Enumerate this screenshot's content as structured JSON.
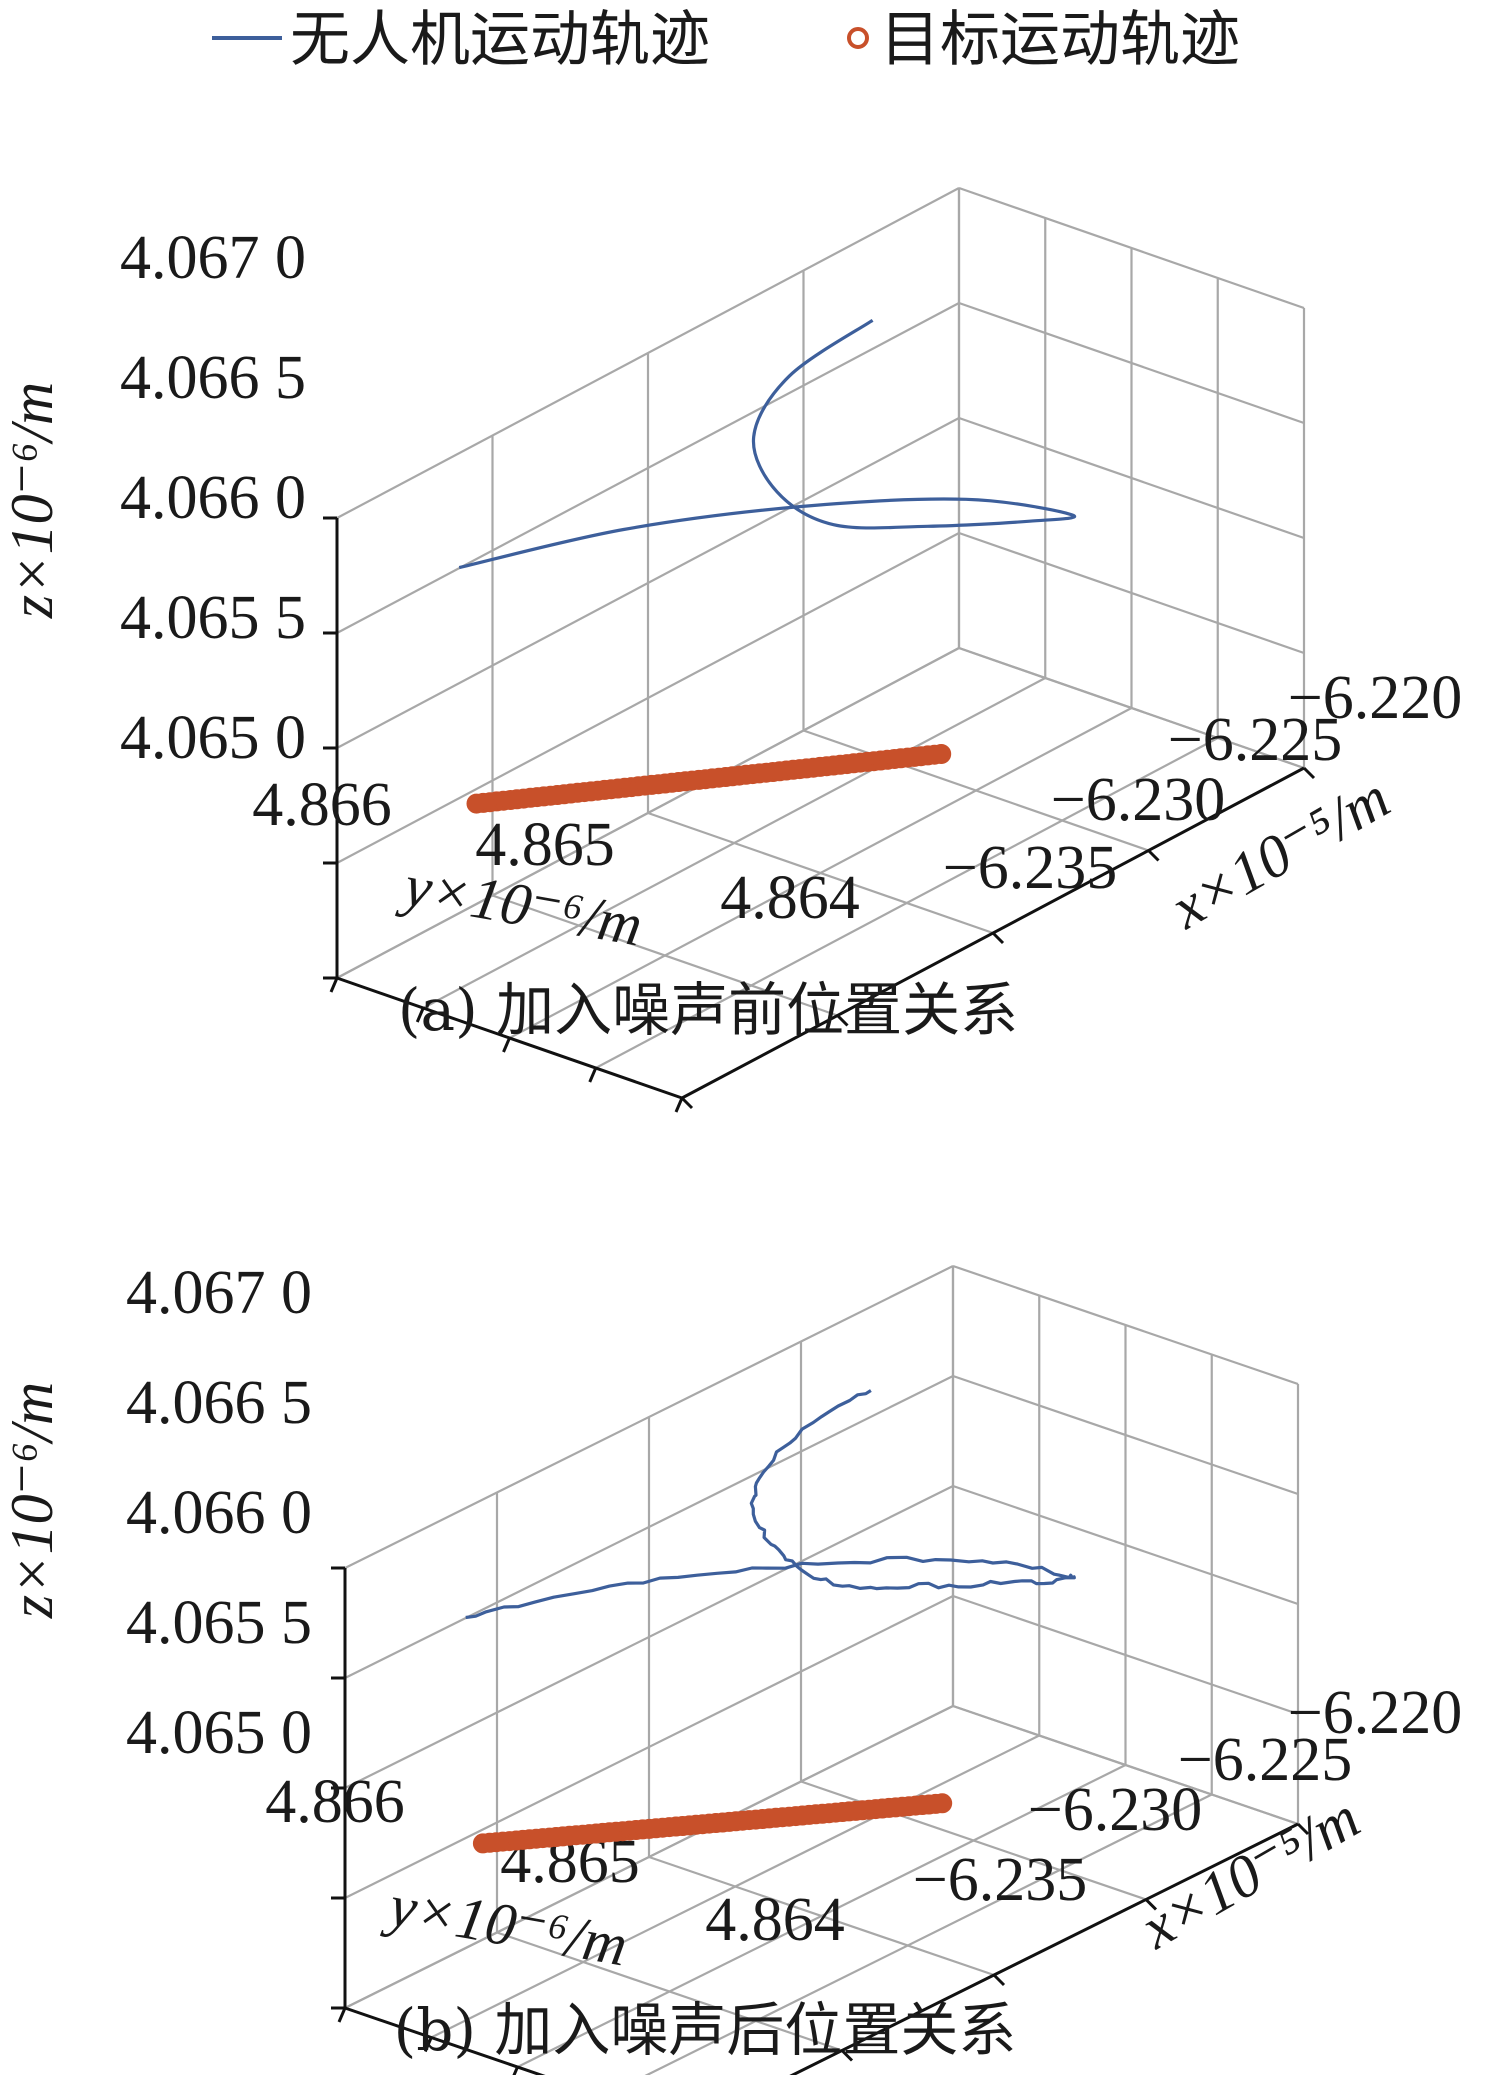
{
  "legend": {
    "position": "top-center",
    "items": [
      {
        "label": "无人机运动轨迹",
        "marker": "line",
        "color": "#3d5f9b"
      },
      {
        "label": "目标运动轨迹",
        "marker": "circle",
        "color": "#c8502a"
      }
    ]
  },
  "chart_data": [
    {
      "type": "line3d",
      "caption": "(a) 加入噪声前位置关系",
      "x_axis": {
        "label": "x×10⁻⁵/m",
        "ticks": [
          "−6.235",
          "−6.230",
          "−6.225",
          "−6.220"
        ],
        "range": [
          -6.235,
          -6.22
        ]
      },
      "y_axis": {
        "label": "y×10⁻⁶/m",
        "ticks": [
          "4.866",
          "4.865",
          "4.864"
        ],
        "range": [
          4.864,
          4.866
        ]
      },
      "z_axis": {
        "label": "z×10⁻⁶/m",
        "ticks": [
          "4.065 0",
          "4.065 5",
          "4.066 0",
          "4.066 5",
          "4.067 0"
        ],
        "range": [
          4.065,
          4.067
        ]
      },
      "grid": true,
      "noise": false,
      "series": [
        {
          "name": "无人机运动轨迹",
          "style": "line",
          "x": [
            -6.2333,
            -6.231,
            -6.2288,
            -6.2269,
            -6.226,
            -6.2262,
            -6.227,
            -6.2276,
            -6.2273,
            -6.2262,
            -6.2245,
            -6.2225
          ],
          "y": [
            4.8657,
            4.8653,
            4.8648,
            4.8643,
            4.8639,
            4.8641,
            4.8645,
            4.8649,
            4.8653,
            4.8657,
            4.8659,
            4.8659
          ],
          "z": [
            4.0667,
            4.06675,
            4.06677,
            4.06675,
            4.0667,
            4.06664,
            4.06659,
            4.06655,
            4.06656,
            4.06659,
            4.06664,
            4.06669
          ]
        },
        {
          "name": "目标运动轨迹",
          "style": "markers",
          "x_start": -6.2333,
          "x_end": -6.2275,
          "y_start": 4.8656,
          "y_end": 4.8643,
          "z": 4.0657
        }
      ]
    },
    {
      "type": "line3d",
      "caption": "(b) 加入噪声后位置关系",
      "x_axis": {
        "label": "x×10⁻⁵/m",
        "ticks": [
          "−6.235",
          "−6.230",
          "−6.225",
          "−6.220"
        ],
        "range": [
          -6.235,
          -6.22
        ]
      },
      "y_axis": {
        "label": "y×10⁻⁶/m",
        "ticks": [
          "4.866",
          "4.865",
          "4.864"
        ],
        "range": [
          4.864,
          4.866
        ]
      },
      "z_axis": {
        "label": "z×10⁻⁶/m",
        "ticks": [
          "4.065 0",
          "4.065 5",
          "4.066 0",
          "4.066 5",
          "4.067 0"
        ],
        "range": [
          4.065,
          4.067
        ]
      },
      "grid": true,
      "noise": true,
      "series": [
        {
          "name": "无人机运动轨迹",
          "style": "line",
          "x": [
            -6.2333,
            -6.231,
            -6.2288,
            -6.2269,
            -6.226,
            -6.2262,
            -6.227,
            -6.2276,
            -6.2273,
            -6.2262,
            -6.2245,
            -6.2225
          ],
          "y": [
            4.8657,
            4.8653,
            4.8648,
            4.8643,
            4.8639,
            4.8641,
            4.8645,
            4.8649,
            4.8653,
            4.8657,
            4.8659,
            4.8659
          ],
          "z": [
            4.0667,
            4.06675,
            4.06677,
            4.06675,
            4.0667,
            4.06664,
            4.06659,
            4.06655,
            4.06656,
            4.06659,
            4.06664,
            4.06669
          ]
        },
        {
          "name": "目标运动轨迹",
          "style": "markers",
          "x_start": -6.2333,
          "x_end": -6.2275,
          "y_start": 4.8656,
          "y_end": 4.8643,
          "z": 4.0657
        }
      ]
    }
  ]
}
